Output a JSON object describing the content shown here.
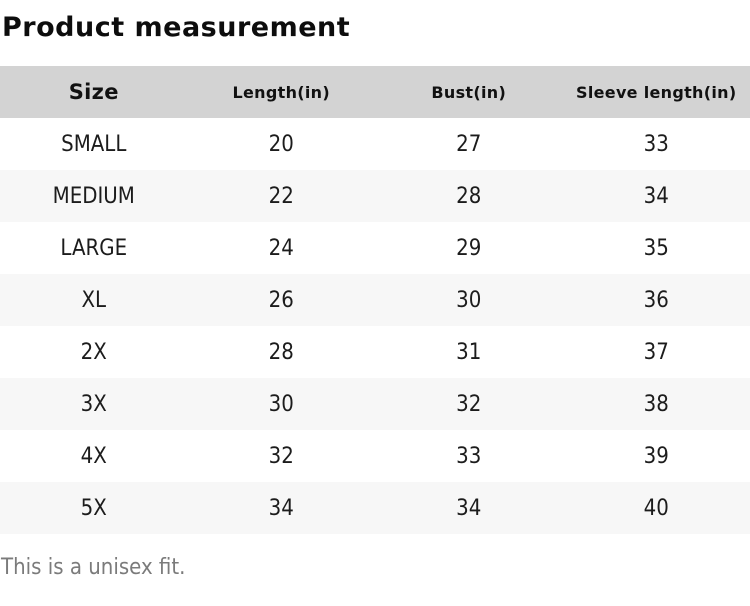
{
  "page": {
    "title": "Product measurement",
    "footer_note": "This is a unisex fit."
  },
  "colors": {
    "header_bg": "#d3d3d3",
    "row_alt_bg": "#f7f7f7",
    "body_text": "#1c1c1c",
    "footer_text": "#7b7b7b"
  },
  "table": {
    "headers": [
      "Size",
      "Length(in)",
      "Bust(in)",
      "Sleeve length(in)"
    ],
    "rows": [
      {
        "size": "SMALL",
        "length": "20",
        "bust": "27",
        "sleeve": "33"
      },
      {
        "size": "MEDIUM",
        "length": "22",
        "bust": "28",
        "sleeve": "34"
      },
      {
        "size": "LARGE",
        "length": "24",
        "bust": "29",
        "sleeve": "35"
      },
      {
        "size": "XL",
        "length": "26",
        "bust": "30",
        "sleeve": "36"
      },
      {
        "size": "2X",
        "length": "28",
        "bust": "31",
        "sleeve": "37"
      },
      {
        "size": "3X",
        "length": "30",
        "bust": "32",
        "sleeve": "38"
      },
      {
        "size": "4X",
        "length": "32",
        "bust": "33",
        "sleeve": "39"
      },
      {
        "size": "5X",
        "length": "34",
        "bust": "34",
        "sleeve": "40"
      }
    ]
  }
}
